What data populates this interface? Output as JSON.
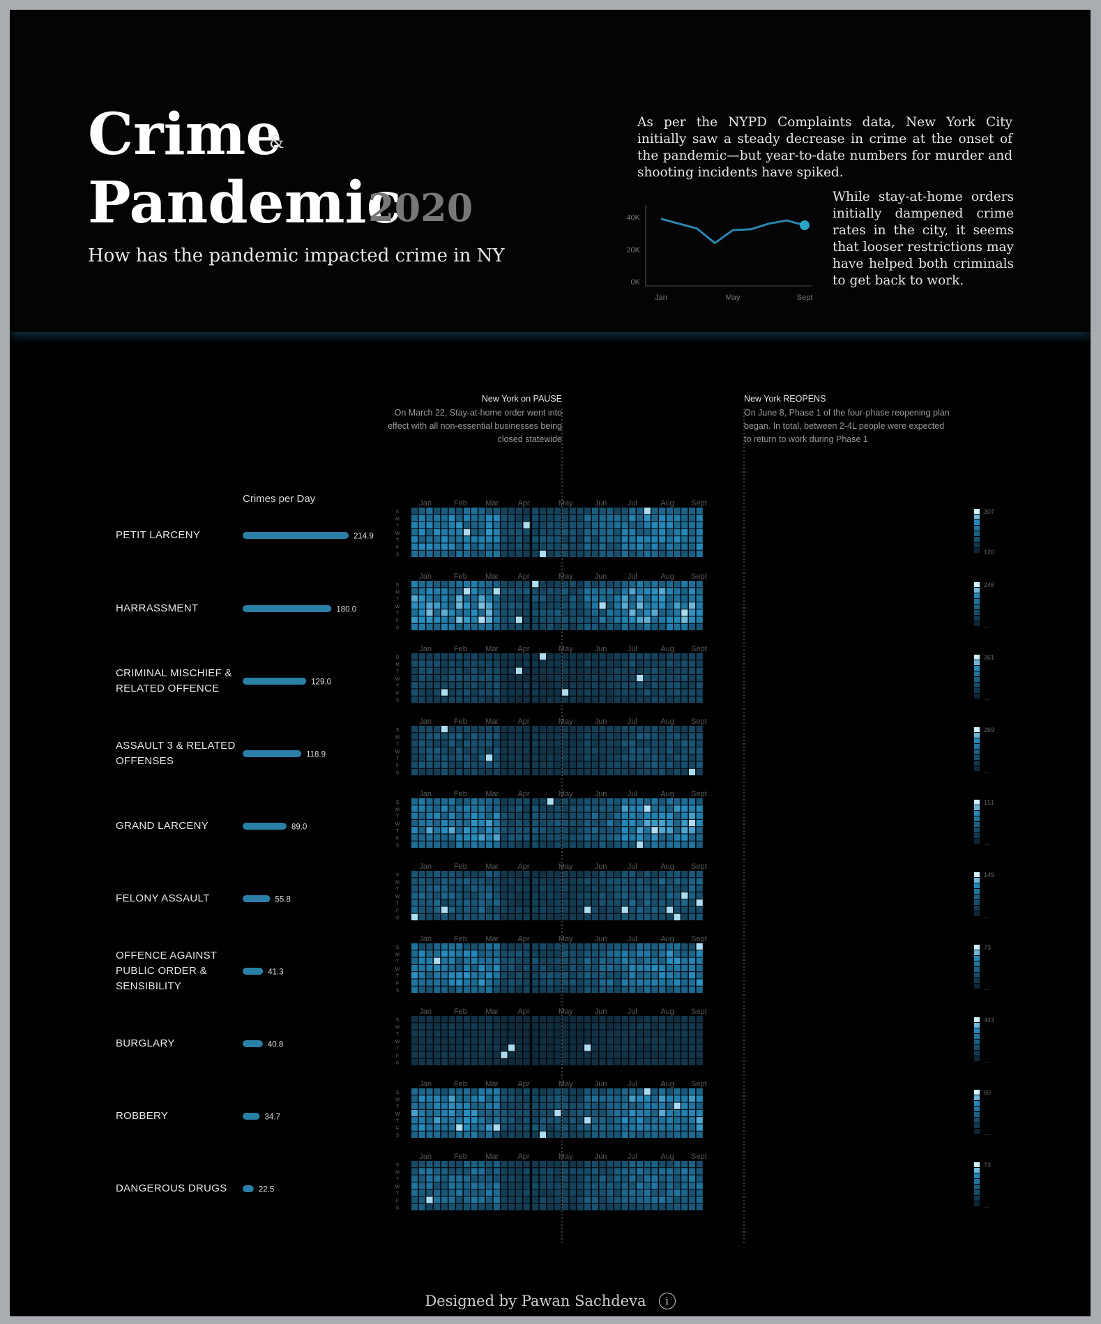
{
  "header": {
    "title_line1": "Crime",
    "title_amp": "&",
    "title_line2": "Pandemic",
    "year": "2020",
    "subtitle": "How has the pandemic impacted crime in NY",
    "intro_text": "As per the NYPD Complaints data, New York City initially saw a steady decrease in crime at the onset of the pandemic—but year-to-date numbers for murder and shooting incidents have spiked.",
    "intro_text2": "While stay-at-home orders initially dampened crime rates in the city, it seems that looser restrictions may have helped both criminals to get back to work."
  },
  "annotations": {
    "pause_title": "New York on PAUSE",
    "pause_body": "On March 22, Stay-at-home order went into effect with all non-essential businesses being closed statewide",
    "reopen_title": "New York REOPENS",
    "reopen_body": "On June 8, Phase 1 of the four-phase reopening plan began. In total, between 2-4L people were expected to return to work during Phase 1"
  },
  "bar_title": "Crimes per Day",
  "footer": {
    "credit": "Designed by Pawan Sachdeva",
    "info_glyph": "i"
  },
  "colors": {
    "background": "#000000",
    "accent": "#2e86b0",
    "bar": "#2a7fa6",
    "heat_low": "#0e2636",
    "heat_high": "#cdf1ff"
  },
  "chart_data": [
    {
      "type": "line",
      "x": [
        "Jan",
        "Feb",
        "Mar",
        "Apr",
        "May",
        "Jun",
        "Jul",
        "Aug",
        "Sept"
      ],
      "values": [
        39000,
        36000,
        33000,
        24000,
        32000,
        32500,
        36000,
        38000,
        35000
      ],
      "yticks": [
        "40K",
        "20K",
        "0K"
      ],
      "xticks": [
        "Jan",
        "May",
        "Sept"
      ],
      "ylim": [
        0,
        45000
      ],
      "highlight_last_point": true
    },
    {
      "type": "bar",
      "title": "Crimes per Day",
      "categories": [
        "PETIT LARCENY",
        "HARRASSMENT",
        "CRIMINAL MISCHIEF & RELATED OFFENCE",
        "ASSAULT 3 & RELATED OFFENSES",
        "GRAND LARCENY",
        "FELONY ASSAULT",
        "OFFENCE AGAINST PUBLIC ORDER & SENSIBILITY",
        "BURGLARY",
        "ROBBERY",
        "DANGEROUS DRUGS"
      ],
      "value_labels": [
        "214.9",
        "180.0",
        "129.0",
        "118.9",
        "89.0",
        "55.8",
        "41.3",
        "40.8",
        "34.7",
        "22.5"
      ],
      "values": [
        214.9,
        180.0,
        129.0,
        118.9,
        89.0,
        55.8,
        41.3,
        40.8,
        34.7,
        22.5
      ]
    },
    {
      "type": "heatmap",
      "description_axis": "weeks Jan–Sept 2020 by day of week",
      "months": [
        "Jan",
        "Feb",
        "Mar",
        "Apr",
        "May",
        "Jun",
        "Jul",
        "Aug",
        "Sept"
      ],
      "days": [
        "S",
        "M",
        "T",
        "W",
        "T",
        "F",
        "S"
      ],
      "legend_max": [
        "307",
        "246",
        "361",
        "269",
        "151",
        "149",
        "73",
        "443",
        "60",
        "73"
      ],
      "legend_min": [
        "120",
        "...",
        "...",
        "...",
        "...",
        "...",
        "...",
        "...",
        "...",
        "..."
      ],
      "intensity": [
        0.7,
        0.8,
        0.3,
        0.35,
        0.75,
        0.45,
        0.7,
        0.15,
        0.75,
        0.55
      ]
    }
  ]
}
